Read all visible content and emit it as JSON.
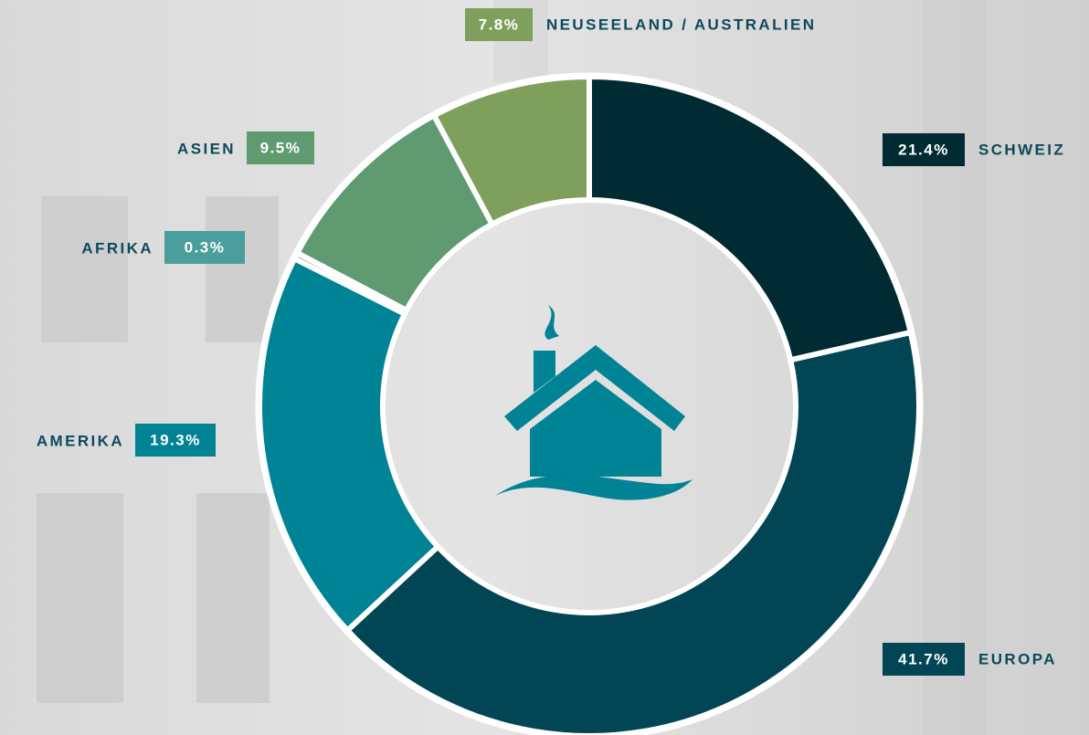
{
  "chart_data": {
    "type": "pie",
    "categories": [
      "SCHWEIZ",
      "EUROPA",
      "AMERIKA",
      "AFRIKA",
      "ASIEN",
      "NEUSEELAND / AUSTRALIEN"
    ],
    "values": [
      21.4,
      41.7,
      19.3,
      0.3,
      9.5,
      7.8
    ],
    "value_labels": [
      "21.4%",
      "41.7%",
      "19.3%",
      "0.3%",
      "9.5%",
      "7.8%"
    ],
    "colors": [
      "#012b33",
      "#024656",
      "#018396",
      "#4a9e9c",
      "#5f9a70",
      "#7fa05c"
    ]
  }
}
